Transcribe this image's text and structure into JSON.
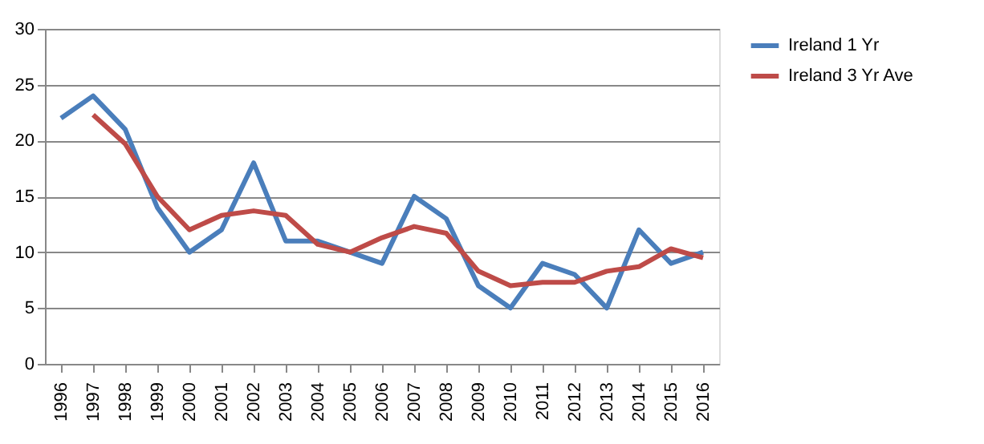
{
  "chart_data": {
    "type": "line",
    "categories": [
      "1996",
      "1997",
      "1998",
      "1999",
      "2000",
      "2001",
      "2002",
      "2003",
      "2004",
      "2005",
      "2006",
      "2007",
      "2008",
      "2009",
      "2010",
      "2011",
      "2012",
      "2013",
      "2014",
      "2015",
      "2016"
    ],
    "series": [
      {
        "name": "Ireland 1 Yr",
        "color": "#4a7ebb",
        "values": [
          22,
          24,
          21,
          14,
          10,
          12,
          18,
          11,
          11,
          10,
          9,
          15,
          13,
          7,
          5,
          9,
          8,
          5,
          12,
          9,
          10
        ]
      },
      {
        "name": "Ireland 3 Yr Ave",
        "color": "#be4b48",
        "values": [
          null,
          22.3,
          19.7,
          15,
          12,
          13.3,
          13.7,
          13.3,
          10.7,
          10,
          11.3,
          12.3,
          11.7,
          8.3,
          7,
          7.3,
          7.3,
          8.3,
          8.7,
          10.3,
          9.5
        ]
      }
    ],
    "ylim": [
      0,
      30
    ],
    "yticks": [
      0,
      5,
      10,
      15,
      20,
      25,
      30
    ],
    "grid": "y",
    "legend": "right",
    "marker": "none",
    "line_style": "solid"
  }
}
